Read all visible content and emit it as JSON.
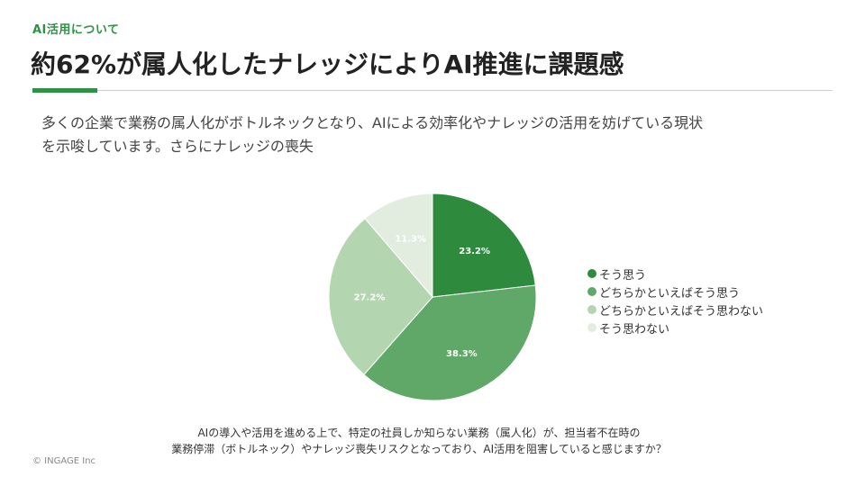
{
  "header": {
    "section_label": "AI活用について",
    "title": "約62%が属人化したナレッジによりAI推進に課題感"
  },
  "lead": {
    "line1": "多くの企業で業務の属人化がボトルネックとなり、AIによる効率化やナレッジの活用を妨げている現状",
    "line2": "を示唆しています。さらにナレッジの喪失"
  },
  "chart_data": {
    "type": "pie",
    "title": "",
    "categories": [
      "そう思う",
      "どちらかといえばそう思う",
      "どちらかといえばそう思わない",
      "そう思わない"
    ],
    "values": [
      23.2,
      38.3,
      27.2,
      11.3
    ],
    "labels": [
      "23.2%",
      "38.3%",
      "27.2%",
      "11.3%"
    ],
    "colors": [
      "#2e8b3e",
      "#5fa867",
      "#b3d6b0",
      "#e2ede0"
    ],
    "label_colors": [
      "#ffffff",
      "#ffffff",
      "#ffffff",
      "#ffffff"
    ],
    "start": "12 o'clock",
    "direction": "clockwise",
    "legend_position": "right"
  },
  "question": {
    "line1": "AIの導入や活用を進める上で、特定の社員しか知らない業務（属人化）が、担当者不在時の",
    "line2": "業務停滞（ボトルネック）やナレッジ喪失リスクとなっており、AI活用を阻害していると感じますか？"
  },
  "footer": {
    "copyright": "© INGAGE Inc"
  }
}
